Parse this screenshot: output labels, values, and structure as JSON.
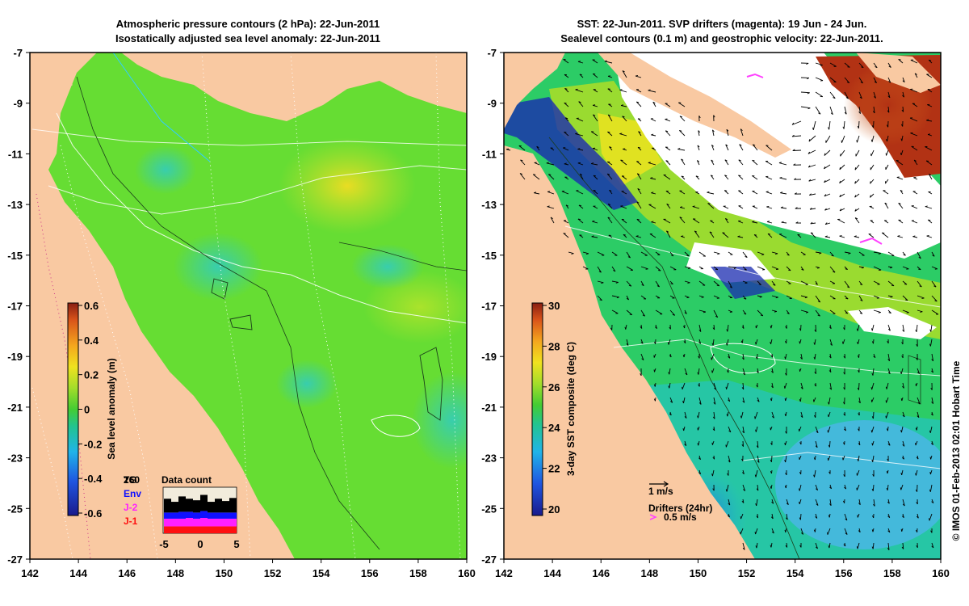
{
  "left_panel": {
    "title_line1": "Atmospheric pressure contours (2 hPa): 22-Jun-2011",
    "title_line2": "Isostatically adjusted sea level anomaly: 22-Jun-2011",
    "x_ticks": [
      "142",
      "144",
      "146",
      "148",
      "150",
      "152",
      "154",
      "156",
      "158",
      "160"
    ],
    "y_ticks": [
      "-7",
      "-9",
      "-11",
      "-13",
      "-15",
      "-17",
      "-19",
      "-21",
      "-23",
      "-25",
      "-27"
    ],
    "colorbar": {
      "label": "Sea level anomaly (m)",
      "ticks": [
        "0.6",
        "0.4",
        "0.2",
        "0",
        "-0.2",
        "-0.4",
        "-0.6"
      ]
    },
    "data_count": {
      "title": "Data count",
      "legend": [
        {
          "label": "TG",
          "color": "#000000"
        },
        {
          "label": "Env",
          "color": "#1010ff"
        },
        {
          "label": "J-2",
          "color": "#ff20ff"
        },
        {
          "label": "J-1",
          "color": "#ff1010"
        }
      ],
      "overlay_label": "260",
      "x_ticks": [
        "-5",
        "0",
        "5"
      ]
    }
  },
  "right_panel": {
    "title_line1": "SST: 22-Jun-2011. SVP drifters (magenta): 19 Jun - 24 Jun.",
    "title_line2": "Sealevel contours (0.1 m) and geostrophic velocity: 22-Jun-2011.",
    "x_ticks": [
      "142",
      "144",
      "146",
      "148",
      "150",
      "152",
      "154",
      "156",
      "158",
      "160"
    ],
    "y_ticks": [
      "-7",
      "-9",
      "-11",
      "-13",
      "-15",
      "-17",
      "-19",
      "-21",
      "-23",
      "-25",
      "-27"
    ],
    "colorbar": {
      "label": "3-day SST composite (deg C)",
      "ticks": [
        "30",
        "28",
        "26",
        "24",
        "22",
        "20"
      ]
    },
    "velocity_scale_label": "1 m/s",
    "drifter_label": "Drifters (24hr)",
    "drifter_speed_label": "0.5 m/s"
  },
  "credit": "© IMOS 01-Feb-2013 02:01 Hobart Time",
  "colors": {
    "land": "#f9c9a2",
    "sla_background": "#66dd33",
    "sst_background": "#2ccc66",
    "magenta": "#ff40ff"
  }
}
